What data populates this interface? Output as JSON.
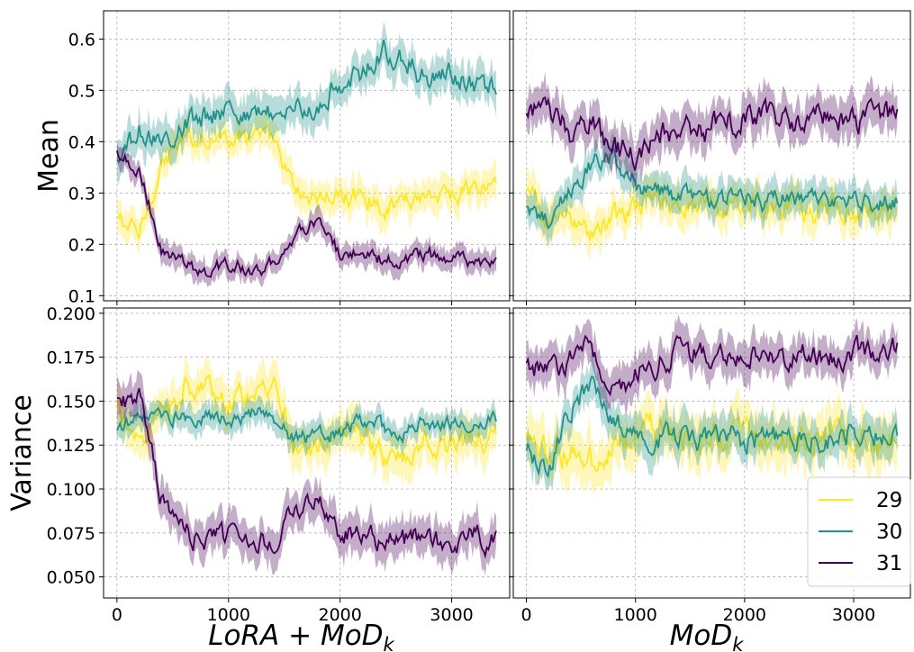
{
  "chart_data": {
    "type": "line",
    "layout": "2x2 grid, shared x per column, shared y per row",
    "x": [
      0,
      200,
      400,
      600,
      800,
      1000,
      1200,
      1400,
      1600,
      1800,
      2000,
      2200,
      2400,
      2600,
      2800,
      3000,
      3200,
      3400
    ],
    "xlim": [
      -120,
      3520
    ],
    "xticks": [
      "0",
      "1000",
      "2000",
      "3000"
    ],
    "xtick_values": [
      0,
      1000,
      2000,
      3000
    ],
    "column_labels": [
      "LoRA + MoD",
      "MoD"
    ],
    "column_label_subscript": "k",
    "row_labels": [
      "Mean",
      "Variance"
    ],
    "rows": [
      {
        "ylim": [
          0.09,
          0.655
        ],
        "yticks": [
          "0.1",
          "0.2",
          "0.3",
          "0.4",
          "0.5",
          "0.6"
        ],
        "ytick_values": [
          0.1,
          0.2,
          0.3,
          0.4,
          0.5,
          0.6
        ]
      },
      {
        "ylim": [
          0.038,
          0.203
        ],
        "yticks": [
          "0.050",
          "0.075",
          "0.100",
          "0.125",
          "0.150",
          "0.175",
          "0.200"
        ],
        "ytick_values": [
          0.05,
          0.075,
          0.1,
          0.125,
          0.15,
          0.175,
          0.2
        ]
      }
    ],
    "panels": [
      {
        "row": 0,
        "col": 0,
        "series": [
          {
            "name": "29",
            "values": [
              0.25,
              0.22,
              0.36,
              0.4,
              0.41,
              0.41,
              0.42,
              0.4,
              0.3,
              0.29,
              0.29,
              0.3,
              0.27,
              0.29,
              0.3,
              0.3,
              0.31,
              0.31
            ],
            "band": 0.035
          },
          {
            "name": "30",
            "values": [
              0.36,
              0.42,
              0.4,
              0.43,
              0.45,
              0.47,
              0.45,
              0.46,
              0.46,
              0.46,
              0.52,
              0.53,
              0.58,
              0.55,
              0.52,
              0.53,
              0.51,
              0.51
            ],
            "band": 0.04
          },
          {
            "name": "31",
            "values": [
              0.38,
              0.35,
              0.19,
              0.16,
              0.15,
              0.16,
              0.15,
              0.16,
              0.22,
              0.25,
              0.18,
              0.18,
              0.17,
              0.17,
              0.18,
              0.17,
              0.16,
              0.16
            ],
            "band": 0.025
          }
        ]
      },
      {
        "row": 0,
        "col": 1,
        "series": [
          {
            "name": "29",
            "values": [
              0.3,
              0.25,
              0.26,
              0.22,
              0.25,
              0.27,
              0.29,
              0.28,
              0.28,
              0.27,
              0.28,
              0.27,
              0.27,
              0.26,
              0.27,
              0.26,
              0.26,
              0.27
            ],
            "band": 0.04
          },
          {
            "name": "30",
            "values": [
              0.27,
              0.25,
              0.3,
              0.36,
              0.37,
              0.32,
              0.3,
              0.29,
              0.29,
              0.29,
              0.3,
              0.28,
              0.29,
              0.28,
              0.29,
              0.28,
              0.28,
              0.29
            ],
            "band": 0.035
          },
          {
            "name": "31",
            "values": [
              0.45,
              0.47,
              0.42,
              0.44,
              0.38,
              0.38,
              0.41,
              0.43,
              0.42,
              0.44,
              0.44,
              0.45,
              0.44,
              0.44,
              0.45,
              0.44,
              0.45,
              0.45
            ],
            "band": 0.045
          }
        ]
      },
      {
        "row": 1,
        "col": 0,
        "series": [
          {
            "name": "29",
            "values": [
              0.145,
              0.13,
              0.145,
              0.16,
              0.158,
              0.15,
              0.152,
              0.155,
              0.125,
              0.125,
              0.135,
              0.13,
              0.115,
              0.122,
              0.128,
              0.125,
              0.128,
              0.128
            ],
            "band": 0.013
          },
          {
            "name": "30",
            "values": [
              0.132,
              0.142,
              0.142,
              0.14,
              0.142,
              0.14,
              0.143,
              0.142,
              0.128,
              0.13,
              0.132,
              0.138,
              0.135,
              0.133,
              0.138,
              0.138,
              0.138,
              0.14
            ],
            "band": 0.008
          },
          {
            "name": "31",
            "values": [
              0.15,
              0.152,
              0.095,
              0.075,
              0.07,
              0.072,
              0.07,
              0.073,
              0.088,
              0.095,
              0.075,
              0.073,
              0.07,
              0.07,
              0.072,
              0.07,
              0.072,
              0.07
            ],
            "band": 0.012
          }
        ]
      },
      {
        "row": 1,
        "col": 1,
        "series": [
          {
            "name": "29",
            "values": [
              0.13,
              0.118,
              0.122,
              0.115,
              0.125,
              0.132,
              0.135,
              0.13,
              0.128,
              0.13,
              0.128,
              0.13,
              0.128,
              0.128,
              0.13,
              0.128,
              0.125,
              0.128
            ],
            "band": 0.016
          },
          {
            "name": "30",
            "values": [
              0.12,
              0.112,
              0.145,
              0.16,
              0.14,
              0.13,
              0.128,
              0.13,
              0.128,
              0.13,
              0.128,
              0.13,
              0.128,
              0.13,
              0.128,
              0.132,
              0.13,
              0.13
            ],
            "band": 0.012
          },
          {
            "name": "31",
            "values": [
              0.17,
              0.165,
              0.175,
              0.18,
              0.155,
              0.165,
              0.172,
              0.178,
              0.178,
              0.175,
              0.178,
              0.175,
              0.175,
              0.178,
              0.175,
              0.178,
              0.178,
              0.18
            ],
            "band": 0.012
          }
        ]
      }
    ],
    "legend": {
      "placement": "lower-right of bottom-right panel",
      "entries": [
        {
          "name": "29",
          "color": "#fde725"
        },
        {
          "name": "30",
          "color": "#21918c"
        },
        {
          "name": "31",
          "color": "#440154"
        }
      ]
    },
    "grid": true
  }
}
